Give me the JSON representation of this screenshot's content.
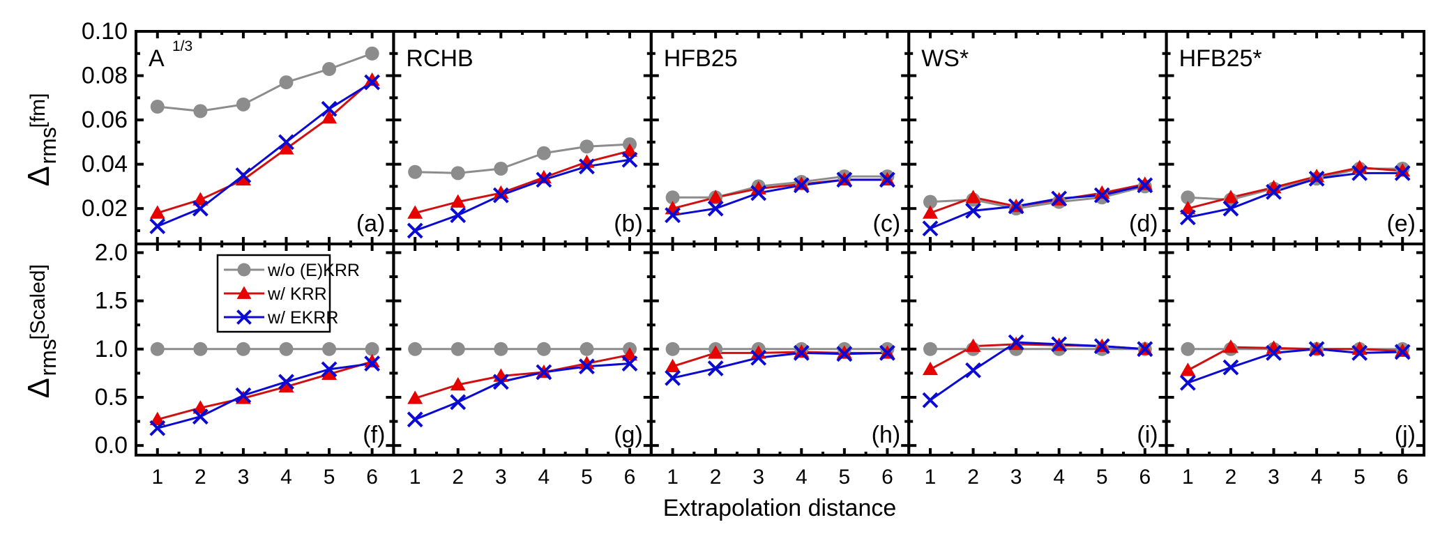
{
  "chart_data": {
    "type": "line",
    "layout": "2 rows x 5 columns, shared axes",
    "xlabel": "Extrapolation distance",
    "x": [
      1,
      2,
      3,
      4,
      5,
      6
    ],
    "x_tick_labels": [
      "1",
      "2",
      "3",
      "4",
      "5",
      "6"
    ],
    "xlim": [
      0.5,
      6.5
    ],
    "rows": [
      {
        "ylabel_main": "Δ",
        "ylabel_sub": "rms",
        "ylabel_unit": "[fm]",
        "ylim": [
          0.004,
          0.1
        ],
        "y_ticks": [
          0.02,
          0.04,
          0.06,
          0.08,
          0.1
        ],
        "y_tick_labels": [
          "0.02",
          "0.04",
          "0.06",
          "0.08",
          "0.10"
        ],
        "y_minor_ticks": [
          0.01,
          0.03,
          0.05,
          0.07,
          0.09
        ]
      },
      {
        "ylabel_main": "Δ",
        "ylabel_sub": "rms",
        "ylabel_unit": "[Scaled]",
        "ylim": [
          -0.1,
          2.09
        ],
        "y_ticks": [
          0.0,
          0.5,
          1.0,
          1.5,
          2.0
        ],
        "y_tick_labels": [
          "0.0",
          "0.5",
          "1.0",
          "1.5",
          "2.0"
        ],
        "y_minor_ticks": [
          0.25,
          0.75,
          1.25,
          1.75
        ]
      }
    ],
    "legend": {
      "placement": "top-right of panel (f)",
      "entries": [
        {
          "key": "without",
          "label": "w/o (E)KRR"
        },
        {
          "key": "krr",
          "label": "w/ KRR"
        },
        {
          "key": "ekrr",
          "label": "w/ EKRR"
        }
      ]
    },
    "series_styles": {
      "without": {
        "color": "#8c8c8c",
        "marker": "circle"
      },
      "krr": {
        "color": "#e60000",
        "line_color": "#d01010",
        "marker": "triangle"
      },
      "ekrr": {
        "color": "#0a0ad2",
        "marker": "cross"
      }
    },
    "panels": [
      {
        "id": "a",
        "row": 0,
        "col": 0,
        "title": "A",
        "title_sup": "1/3",
        "tag": "(a)",
        "series": {
          "without": [
            0.066,
            0.064,
            0.067,
            0.077,
            0.083,
            0.09
          ],
          "krr": [
            0.018,
            0.024,
            0.033,
            0.047,
            0.061,
            0.078
          ],
          "ekrr": [
            0.012,
            0.02,
            0.035,
            0.05,
            0.065,
            0.077
          ]
        }
      },
      {
        "id": "b",
        "row": 0,
        "col": 1,
        "title": "RCHB",
        "title_sup": "",
        "tag": "(b)",
        "series": {
          "without": [
            0.0365,
            0.036,
            0.038,
            0.045,
            0.048,
            0.049
          ],
          "krr": [
            0.018,
            0.023,
            0.027,
            0.034,
            0.041,
            0.046
          ],
          "ekrr": [
            0.01,
            0.017,
            0.026,
            0.033,
            0.039,
            0.042
          ]
        }
      },
      {
        "id": "c",
        "row": 0,
        "col": 2,
        "title": "HFB25",
        "title_sup": "",
        "tag": "(c)",
        "series": {
          "without": [
            0.025,
            0.025,
            0.03,
            0.032,
            0.0345,
            0.0345
          ],
          "krr": [
            0.02,
            0.025,
            0.029,
            0.031,
            0.033,
            0.033
          ],
          "ekrr": [
            0.017,
            0.02,
            0.027,
            0.0305,
            0.033,
            0.033
          ]
        }
      },
      {
        "id": "d",
        "row": 0,
        "col": 3,
        "title": "WS*",
        "title_sup": "",
        "tag": "(d)",
        "series": {
          "without": [
            0.023,
            0.024,
            0.02,
            0.023,
            0.025,
            0.03
          ],
          "krr": [
            0.018,
            0.025,
            0.021,
            0.024,
            0.027,
            0.031
          ],
          "ekrr": [
            0.011,
            0.019,
            0.021,
            0.0245,
            0.026,
            0.0305
          ]
        }
      },
      {
        "id": "e",
        "row": 0,
        "col": 4,
        "title": "HFB25*",
        "title_sup": "",
        "tag": "(e)",
        "series": {
          "without": [
            0.025,
            0.024,
            0.029,
            0.0335,
            0.038,
            0.038
          ],
          "krr": [
            0.02,
            0.025,
            0.0295,
            0.0345,
            0.0385,
            0.037
          ],
          "ekrr": [
            0.016,
            0.02,
            0.0275,
            0.0335,
            0.036,
            0.036
          ]
        }
      },
      {
        "id": "f",
        "row": 1,
        "col": 0,
        "title": "",
        "title_sup": "",
        "tag": "(f)",
        "has_legend": true,
        "series": {
          "without": [
            1.0,
            1.0,
            1.0,
            1.0,
            1.0,
            1.0
          ],
          "krr": [
            0.27,
            0.39,
            0.49,
            0.61,
            0.74,
            0.87
          ],
          "ekrr": [
            0.18,
            0.3,
            0.52,
            0.66,
            0.79,
            0.85
          ]
        }
      },
      {
        "id": "g",
        "row": 1,
        "col": 1,
        "title": "",
        "title_sup": "",
        "tag": "(g)",
        "series": {
          "without": [
            1.0,
            1.0,
            1.0,
            1.0,
            1.0,
            1.0
          ],
          "krr": [
            0.49,
            0.63,
            0.72,
            0.76,
            0.85,
            0.94
          ],
          "ekrr": [
            0.27,
            0.45,
            0.66,
            0.76,
            0.82,
            0.85
          ]
        }
      },
      {
        "id": "h",
        "row": 1,
        "col": 2,
        "title": "",
        "title_sup": "",
        "tag": "(h)",
        "series": {
          "without": [
            1.0,
            1.0,
            1.0,
            1.0,
            1.0,
            1.0
          ],
          "krr": [
            0.82,
            0.96,
            0.96,
            0.97,
            0.96,
            0.96
          ],
          "ekrr": [
            0.7,
            0.8,
            0.91,
            0.96,
            0.95,
            0.96
          ]
        }
      },
      {
        "id": "i",
        "row": 1,
        "col": 3,
        "title": "",
        "title_sup": "",
        "tag": "(i)",
        "series": {
          "without": [
            1.0,
            1.0,
            1.0,
            1.0,
            1.0,
            1.0
          ],
          "krr": [
            0.79,
            1.03,
            1.05,
            1.04,
            1.03,
            1.0
          ],
          "ekrr": [
            0.47,
            0.78,
            1.07,
            1.05,
            1.03,
            1.0
          ]
        }
      },
      {
        "id": "j",
        "row": 1,
        "col": 4,
        "title": "",
        "title_sup": "",
        "tag": "(j)",
        "series": {
          "without": [
            1.0,
            1.0,
            1.0,
            1.0,
            1.0,
            1.0
          ],
          "krr": [
            0.78,
            1.02,
            1.01,
            1.0,
            1.0,
            0.98
          ],
          "ekrr": [
            0.65,
            0.81,
            0.96,
            1.0,
            0.96,
            0.97
          ]
        }
      }
    ]
  }
}
